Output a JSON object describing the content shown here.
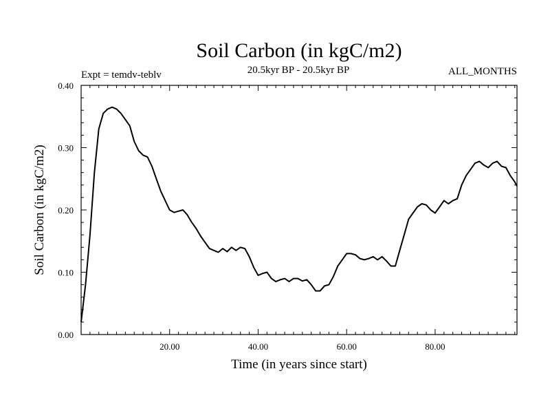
{
  "chart_data": {
    "type": "line",
    "title": "Soil Carbon (in kgC/m2)",
    "left_note": "Expt = temdv-teblv",
    "center_note": "20.5kyr BP - 20.5kyr BP",
    "right_note": "ALL_MONTHS",
    "xlabel": "Time (in years since start)",
    "ylabel": "Soil Carbon (in kgC/m2)",
    "xlim": [
      0,
      98.5
    ],
    "ylim": [
      0,
      0.4
    ],
    "x_ticks": [
      {
        "value": 20,
        "label": "20.00"
      },
      {
        "value": 40,
        "label": "40.00"
      },
      {
        "value": 60,
        "label": "60.00"
      },
      {
        "value": 80,
        "label": "80.00"
      }
    ],
    "y_ticks": [
      {
        "value": 0.0,
        "label": "0.00"
      },
      {
        "value": 0.1,
        "label": "0.10"
      },
      {
        "value": 0.2,
        "label": "0.20"
      },
      {
        "value": 0.3,
        "label": "0.30"
      },
      {
        "value": 0.4,
        "label": "0.40"
      }
    ],
    "grid": false,
    "series": [
      {
        "color": "#000000",
        "x": [
          0,
          1,
          2,
          3,
          4,
          5,
          6,
          7,
          8,
          9,
          10,
          11,
          12,
          13,
          14,
          15,
          16,
          17,
          18,
          19,
          20,
          21,
          22,
          23,
          24,
          25,
          26,
          27,
          28,
          29,
          30,
          31,
          32,
          33,
          34,
          35,
          36,
          37,
          38,
          39,
          40,
          41,
          42,
          43,
          44,
          45,
          46,
          47,
          48,
          49,
          50,
          51,
          52,
          53,
          54,
          55,
          56,
          57,
          58,
          59,
          60,
          61,
          62,
          63,
          64,
          65,
          66,
          67,
          68,
          69,
          70,
          71,
          72,
          73,
          74,
          75,
          76,
          77,
          78,
          79,
          80,
          81,
          82,
          83,
          84,
          85,
          86,
          87,
          88,
          89,
          90,
          91,
          92,
          93,
          94,
          95,
          96,
          97,
          98,
          98.5
        ],
        "y": [
          0.02,
          0.08,
          0.16,
          0.26,
          0.33,
          0.355,
          0.362,
          0.365,
          0.362,
          0.355,
          0.345,
          0.335,
          0.31,
          0.295,
          0.288,
          0.285,
          0.27,
          0.25,
          0.23,
          0.215,
          0.2,
          0.196,
          0.198,
          0.2,
          0.192,
          0.18,
          0.17,
          0.158,
          0.148,
          0.138,
          0.135,
          0.132,
          0.138,
          0.133,
          0.14,
          0.135,
          0.14,
          0.138,
          0.125,
          0.108,
          0.095,
          0.098,
          0.1,
          0.09,
          0.085,
          0.088,
          0.09,
          0.085,
          0.09,
          0.09,
          0.086,
          0.088,
          0.08,
          0.07,
          0.07,
          0.078,
          0.08,
          0.093,
          0.11,
          0.12,
          0.13,
          0.13,
          0.128,
          0.122,
          0.12,
          0.122,
          0.125,
          0.12,
          0.125,
          0.118,
          0.11,
          0.11,
          0.135,
          0.16,
          0.185,
          0.195,
          0.205,
          0.21,
          0.208,
          0.2,
          0.195,
          0.205,
          0.215,
          0.21,
          0.215,
          0.218,
          0.24,
          0.255,
          0.265,
          0.275,
          0.278,
          0.272,
          0.268,
          0.275,
          0.278,
          0.27,
          0.268,
          0.255,
          0.245,
          0.238
        ]
      }
    ]
  }
}
